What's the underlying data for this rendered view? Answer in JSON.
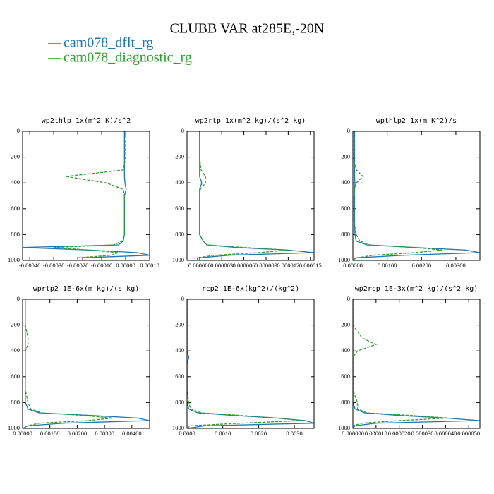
{
  "title": "CLUBB VAR at285E,-20N",
  "chart_data": [
    {
      "type": "profile",
      "title": "wp2thlp   1x(m^2 K)/s^2",
      "y": [
        0,
        100,
        200,
        300,
        350,
        400,
        450,
        500,
        600,
        700,
        800,
        850,
        880,
        900,
        920,
        940,
        960,
        980,
        1000
      ],
      "ylim": [
        0,
        1000
      ],
      "yreverse": true,
      "yticks": [
        0,
        200,
        400,
        600,
        800,
        1000
      ],
      "xlim": [
        -0.00043,
        0.0001
      ],
      "xticks": [
        {
          "value": -0.0004,
          "label": "-0.00040"
        },
        {
          "value": -0.0003,
          "label": "-0.00030"
        },
        {
          "value": -0.0002,
          "label": "-0.00020"
        },
        {
          "value": -0.0001,
          "label": "-0.00010"
        },
        {
          "value": 0,
          "label": "0.00000"
        },
        {
          "value": 0.0001,
          "label": "0.00010"
        }
      ],
      "series": [
        {
          "name": "cam078_dflt_rg",
          "color": "#1f77b4",
          "values": [
            -5e-06,
            -5e-06,
            -5e-06,
            -5e-06,
            -5e-06,
            -3e-06,
            2e-06,
            -5e-06,
            -5e-06,
            -5e-06,
            -5e-06,
            -1e-05,
            -3e-05,
            -0.00043,
            -0.00015,
            5e-05,
            0.0001,
            -0.00018,
            -0.00018
          ]
        },
        {
          "name": "cam078_diagnostic_rg",
          "color": "#2ca02c",
          "dash": "4,2",
          "values": [
            0,
            0,
            0,
            -1e-05,
            -0.00025,
            -8e-05,
            -1e-05,
            -5e-06,
            -5e-06,
            -5e-06,
            -5e-06,
            -1.5e-05,
            -5e-05,
            -0.0003,
            -0.00015,
            -3e-05,
            -6e-05,
            -0.0002,
            -0.0002
          ]
        }
      ]
    },
    {
      "type": "profile",
      "title": "wp2rtp   1x(m^2 kg)/(s^2 kg)",
      "y": [
        0,
        100,
        200,
        300,
        350,
        400,
        450,
        500,
        600,
        700,
        800,
        850,
        880,
        900,
        920,
        940,
        960,
        980,
        1000
      ],
      "ylim": [
        0,
        1000
      ],
      "yreverse": true,
      "yticks": [
        0,
        200,
        400,
        600,
        800,
        1000
      ],
      "xlim": [
        -1.7e-06,
        1.55e-05
      ],
      "xticks": [
        {
          "value": 0,
          "label": "0.000000"
        },
        {
          "value": 3e-06,
          "label": "0.000003"
        },
        {
          "value": 6e-06,
          "label": "0.000006"
        },
        {
          "value": 9e-06,
          "label": "0.000009"
        },
        {
          "value": 1.2e-05,
          "label": "0.000012"
        },
        {
          "value": 1.5e-05,
          "label": "0.000015"
        }
      ],
      "series": [
        {
          "name": "cam078_dflt_rg",
          "color": "#1f77b4",
          "values": [
            0,
            0,
            0,
            0,
            0,
            3e-07,
            0,
            0,
            0,
            0,
            0,
            5e-07,
            1e-06,
            5e-06,
            1.2e-05,
            1.55e-05,
            4e-06,
            0,
            0
          ]
        },
        {
          "name": "cam078_diagnostic_rg",
          "color": "#2ca02c",
          "dash": "4,2",
          "values": [
            0,
            0,
            0,
            2e-07,
            8e-07,
            8e-07,
            1e-07,
            0,
            0,
            0,
            0,
            5e-07,
            1e-06,
            6e-06,
            1.2e-05,
            8e-06,
            2e-06,
            -3e-07,
            -3e-07
          ]
        }
      ]
    },
    {
      "type": "profile",
      "title": "wpthlp2   1x(m K^2)/s",
      "y": [
        0,
        100,
        200,
        300,
        350,
        400,
        450,
        500,
        600,
        700,
        800,
        850,
        880,
        900,
        920,
        940,
        960,
        980,
        1000
      ],
      "ylim": [
        0,
        1000
      ],
      "yreverse": true,
      "yticks": [
        0,
        200,
        400,
        600,
        800,
        1000
      ],
      "xlim": [
        0,
        0.0037
      ],
      "xticks": [
        {
          "value": 0,
          "label": "0.00000"
        },
        {
          "value": 0.001,
          "label": "0.00100"
        },
        {
          "value": 0.002,
          "label": "0.00200"
        },
        {
          "value": 0.003,
          "label": "0.00300"
        }
      ],
      "series": [
        {
          "name": "cam078_dflt_rg",
          "color": "#1f77b4",
          "values": [
            5e-05,
            5e-05,
            5e-05,
            5e-05,
            5e-05,
            6e-05,
            5e-05,
            5e-05,
            5e-05,
            5e-05,
            6e-05,
            0.0001,
            0.0004,
            0.0018,
            0.0033,
            0.0037,
            0.0015,
            0.0001,
            0
          ]
        },
        {
          "name": "cam078_diagnostic_rg",
          "color": "#2ca02c",
          "dash": "4,2",
          "values": [
            0,
            0,
            0,
            0.0001,
            0.0003,
            0.0001,
            5e-05,
            3e-05,
            3e-05,
            3e-05,
            0.0001,
            0.0002,
            0.0005,
            0.0018,
            0.0026,
            0.0018,
            0.0006,
            0.0001,
            0
          ]
        }
      ]
    },
    {
      "type": "profile",
      "title": "wprtp2   1E-6x(m kg)/(s kg)",
      "y": [
        0,
        100,
        200,
        300,
        350,
        400,
        450,
        500,
        600,
        700,
        800,
        850,
        880,
        900,
        920,
        940,
        960,
        980,
        1000
      ],
      "ylim": [
        0,
        1000
      ],
      "yreverse": true,
      "yticks": [
        0,
        200,
        400,
        600,
        800,
        1000
      ],
      "xlim": [
        0,
        0.00465
      ],
      "xticks": [
        {
          "value": 0,
          "label": "0.00000"
        },
        {
          "value": 0.001,
          "label": "0.00100"
        },
        {
          "value": 0.002,
          "label": "0.00200"
        },
        {
          "value": 0.003,
          "label": "0.00300"
        },
        {
          "value": 0.004,
          "label": "0.00400"
        }
      ],
      "series": [
        {
          "name": "cam078_dflt_rg",
          "color": "#1f77b4",
          "values": [
            0.0001,
            0.0001,
            0.0001,
            0.0001,
            0.0001,
            0.0001,
            0.0001,
            0.0001,
            0.0001,
            0.0001,
            0.0001,
            0.0002,
            0.0006,
            0.0025,
            0.0042,
            0.00465,
            0.0015,
            0.0002,
            0
          ]
        },
        {
          "name": "cam078_diagnostic_rg",
          "color": "#2ca02c",
          "dash": "4,2",
          "values": [
            0.0001,
            0.0001,
            0.0001,
            0.0002,
            0.0002,
            0.0001,
            0.0001,
            0.0001,
            0.0001,
            0.0001,
            0.0002,
            0.0003,
            0.0007,
            0.0022,
            0.0033,
            0.0024,
            0.0006,
            0.0002,
            0
          ]
        }
      ]
    },
    {
      "type": "profile",
      "title": "rcp2   1E-6x(kg^2)/(kg^2)",
      "y": [
        0,
        100,
        200,
        300,
        350,
        400,
        450,
        500,
        600,
        700,
        800,
        850,
        880,
        900,
        920,
        940,
        960,
        980,
        1000
      ],
      "ylim": [
        0,
        1000
      ],
      "yreverse": true,
      "yticks": [
        0,
        200,
        400,
        600,
        800,
        1000
      ],
      "xlim": [
        0,
        0.00355
      ],
      "xticks": [
        {
          "value": 0,
          "label": "0.0000"
        },
        {
          "value": 0.001,
          "label": "0.0010"
        },
        {
          "value": 0.002,
          "label": "0.0020"
        },
        {
          "value": 0.003,
          "label": "0.0030"
        }
      ],
      "series": [
        {
          "name": "cam078_dflt_rg",
          "color": "#1f77b4",
          "values": [
            0,
            0,
            0,
            0,
            0,
            0,
            5e-05,
            0,
            0,
            0,
            0,
            5e-05,
            0.0003,
            0.0013,
            0.0025,
            0.0033,
            0.00355,
            0.0005,
            0
          ]
        },
        {
          "name": "cam078_diagnostic_rg",
          "color": "#2ca02c",
          "dash": "4,2",
          "values": [
            0,
            0,
            0,
            0,
            0,
            0,
            0,
            0,
            0,
            0,
            5e-05,
            0.0001,
            0.0004,
            0.0015,
            0.0025,
            0.0032,
            0.0015,
            0.0001,
            0
          ]
        }
      ]
    },
    {
      "type": "profile",
      "title": "wp2rcp   1E-3x(m^2 kg)/(s^2 kg)",
      "y": [
        0,
        100,
        200,
        300,
        350,
        400,
        450,
        500,
        600,
        700,
        800,
        850,
        880,
        900,
        920,
        940,
        960,
        980,
        1000
      ],
      "ylim": [
        0,
        1000
      ],
      "yreverse": true,
      "yticks": [
        0,
        200,
        400,
        600,
        800,
        1000
      ],
      "xlim": [
        0,
        5.48e-05
      ],
      "xticks": [
        {
          "value": 0,
          "label": "0.000000"
        },
        {
          "value": 1e-05,
          "label": "0.000010"
        },
        {
          "value": 2e-05,
          "label": "0.000020"
        },
        {
          "value": 3e-05,
          "label": "0.000030"
        },
        {
          "value": 4e-05,
          "label": "0.000040"
        },
        {
          "value": 5e-05,
          "label": "0.000050"
        }
      ],
      "series": [
        {
          "name": "cam078_dflt_rg",
          "color": "#1f77b4",
          "values": [
            0,
            0,
            0,
            0,
            0,
            0,
            0,
            0,
            0,
            0,
            0,
            1e-06,
            5e-06,
            2e-05,
            4e-05,
            5.5e-05,
            1e-05,
            1e-06,
            0
          ]
        },
        {
          "name": "cam078_diagnostic_rg",
          "color": "#2ca02c",
          "dash": "4,2",
          "values": [
            0,
            0,
            0,
            4e-06,
            1e-05,
            2e-06,
            0,
            0,
            0,
            0,
            2e-06,
            2e-06,
            6e-06,
            2.5e-05,
            4.1e-05,
            2e-05,
            4e-06,
            0,
            0
          ]
        }
      ]
    }
  ]
}
